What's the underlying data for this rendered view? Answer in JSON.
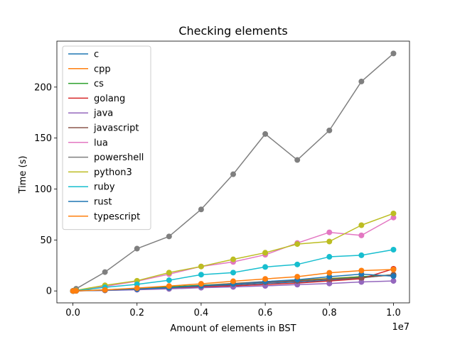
{
  "chart_data": {
    "type": "line",
    "title": "Checking elements",
    "xlabel": "Amount of elements in BST",
    "ylabel": "Time (s)",
    "x_offset_label": "1e7",
    "x_scale_factor": 10000000,
    "xlim": [
      -0.05,
      1.05
    ],
    "ylim": [
      -11.7,
      245.1
    ],
    "x_ticks": [
      0.0,
      0.2,
      0.4,
      0.6,
      0.8,
      1.0
    ],
    "x_tick_labels": [
      "0.0",
      "0.2",
      "0.4",
      "0.6",
      "0.8",
      "1.0"
    ],
    "y_ticks": [
      0,
      50,
      100,
      150,
      200
    ],
    "y_tick_labels": [
      "0",
      "50",
      "100",
      "150",
      "200"
    ],
    "grid": false,
    "legend_position": "upper left",
    "x": [
      0.0,
      0.001,
      0.01,
      0.1,
      0.2,
      0.3,
      0.4,
      0.5,
      0.6,
      0.7,
      0.8,
      0.9,
      1.0
    ],
    "series": [
      {
        "name": "c",
        "color": "#1f77b4",
        "values": [
          0.0,
          0.0,
          0.1,
          0.8,
          1.6,
          2.6,
          4.5,
          5.8,
          7.5,
          8.8,
          10.5,
          12.8,
          16.0
        ]
      },
      {
        "name": "cpp",
        "color": "#ff7f0e",
        "values": [
          0.0,
          0.0,
          0.1,
          0.9,
          2.3,
          3.8,
          5.4,
          7.5,
          9.2,
          10.6,
          12.2,
          14.0,
          15.3
        ]
      },
      {
        "name": "cs",
        "color": "#2ca02c",
        "values": [
          0.0,
          0.0,
          0.1,
          1.0,
          2.5,
          4.0,
          5.5,
          6.8,
          8.8,
          10.0,
          12.0,
          14.0,
          15.8
        ]
      },
      {
        "name": "golang",
        "color": "#d62728",
        "values": [
          0.0,
          0.0,
          0.1,
          0.6,
          1.4,
          2.5,
          4.0,
          5.0,
          6.3,
          7.7,
          9.8,
          12.0,
          21.7
        ]
      },
      {
        "name": "java",
        "color": "#9467bd",
        "values": [
          0.0,
          0.0,
          0.1,
          0.5,
          1.2,
          2.0,
          3.2,
          4.0,
          5.0,
          6.2,
          7.3,
          8.8,
          9.8
        ]
      },
      {
        "name": "javascript",
        "color": "#8c564b",
        "values": [
          0.0,
          0.0,
          0.1,
          0.8,
          2.0,
          3.2,
          5.0,
          6.8,
          8.5,
          9.8,
          11.5,
          13.0,
          16.0
        ]
      },
      {
        "name": "lua",
        "color": "#e377c2",
        "values": [
          0.0,
          0.1,
          0.6,
          4.5,
          9.5,
          16.5,
          24.0,
          28.5,
          35.5,
          47.0,
          57.5,
          54.5,
          72.0
        ]
      },
      {
        "name": "powershell",
        "color": "#7f7f7f",
        "values": [
          0.0,
          0.2,
          2.1,
          18.5,
          41.5,
          53.5,
          80.0,
          114.5,
          154.0,
          128.5,
          157.5,
          205.5,
          233.0
        ]
      },
      {
        "name": "python3",
        "color": "#bcbd22",
        "values": [
          0.0,
          0.1,
          0.6,
          5.5,
          10.0,
          18.0,
          24.0,
          31.0,
          37.5,
          46.0,
          48.5,
          64.5,
          76.0
        ]
      },
      {
        "name": "ruby",
        "color": "#17becf",
        "values": [
          0.0,
          0.0,
          0.3,
          3.5,
          6.5,
          10.5,
          16.0,
          18.0,
          23.5,
          26.0,
          33.5,
          35.0,
          40.5
        ]
      },
      {
        "name": "rust",
        "color": "#1f77b4",
        "values": [
          0.0,
          0.0,
          0.1,
          0.7,
          1.8,
          3.2,
          5.0,
          7.0,
          9.2,
          11.0,
          14.0,
          16.5,
          14.5
        ]
      },
      {
        "name": "typescript",
        "color": "#ff7f0e",
        "values": [
          0.0,
          0.0,
          0.1,
          1.0,
          2.8,
          4.8,
          7.0,
          9.5,
          11.8,
          14.0,
          17.8,
          20.0,
          21.0
        ]
      }
    ]
  }
}
